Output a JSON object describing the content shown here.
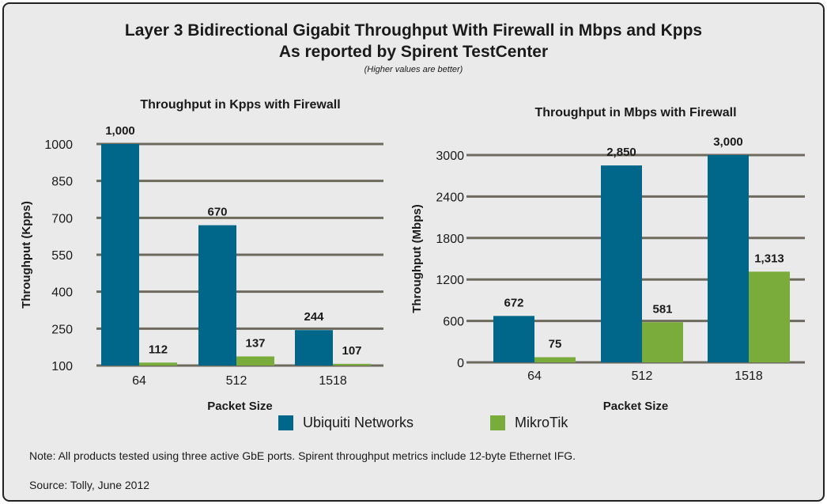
{
  "title": {
    "line1": "Layer 3 Bidirectional Gigabit Throughput With Firewall in Mbps and Kpps",
    "line2": "As reported by Spirent TestCenter",
    "subtitle": "(Higher values are better)"
  },
  "colors": {
    "ubiquiti": "#00678a",
    "mikrotik": "#7aac3b",
    "grid": "#6f6a5e",
    "background": "#eaeaea"
  },
  "legend": [
    {
      "label": "Ubiquiti Networks",
      "color": "#00678a"
    },
    {
      "label": "MikroTik",
      "color": "#7aac3b"
    }
  ],
  "chart_data": [
    {
      "type": "bar",
      "title": "Throughput in Kpps with Firewall",
      "xlabel": "Packet Size",
      "ylabel": "Throughput (Kpps)",
      "categories": [
        "64",
        "512",
        "1518"
      ],
      "ylim": [
        100,
        1000
      ],
      "yticks": [
        100,
        250,
        400,
        550,
        700,
        850,
        1000
      ],
      "series": [
        {
          "name": "Ubiquiti Networks",
          "values": [
            1000,
            670,
            244
          ],
          "labels": [
            "1,000",
            "670",
            "244"
          ]
        },
        {
          "name": "MikroTik",
          "values": [
            112,
            137,
            107
          ],
          "labels": [
            "112",
            "137",
            "107"
          ]
        }
      ]
    },
    {
      "type": "bar",
      "title": "Throughput in Mbps with Firewall",
      "xlabel": "Packet Size",
      "ylabel": "Throughput (Mbps)",
      "categories": [
        "64",
        "512",
        "1518"
      ],
      "ylim": [
        0,
        3000
      ],
      "yticks": [
        0,
        600,
        1200,
        1800,
        2400,
        3000
      ],
      "series": [
        {
          "name": "Ubiquiti Networks",
          "values": [
            672,
            2850,
            3000
          ],
          "labels": [
            "672",
            "2,850",
            "3,000"
          ]
        },
        {
          "name": "MikroTik",
          "values": [
            75,
            581,
            1313
          ],
          "labels": [
            "75",
            "581",
            "1,313"
          ]
        }
      ]
    }
  ],
  "note": "Note: All products tested using three active GbE ports. Spirent throughput metrics include 12-byte Ethernet IFG.",
  "source": "Source: Tolly, June 2012"
}
